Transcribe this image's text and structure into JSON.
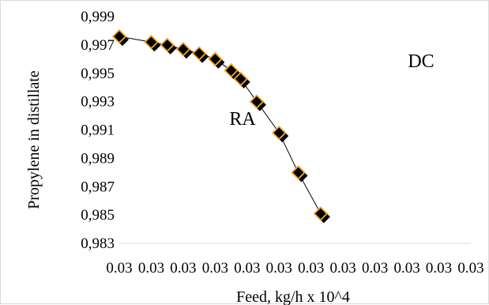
{
  "chart_data": {
    "type": "scatter",
    "title": "",
    "xlabel": "Feed,  kg/h x 10^4",
    "ylabel": "Propylene in distillate",
    "x_tick_labels": [
      "0.03",
      "0.03",
      "0.03",
      "0.03",
      "0.03",
      "0.03",
      "0.03",
      "0.03",
      "0.03",
      "0.03",
      "0.03",
      "0.03"
    ],
    "y_tick_labels": [
      "0,983",
      "0,985",
      "0,987",
      "0,989",
      "0,991",
      "0,993",
      "0,995",
      "0,997",
      "0,999"
    ],
    "ylim": [
      0.983,
      0.999
    ],
    "grid": false,
    "legend": "none",
    "annotations": [
      {
        "text": "RA"
      },
      {
        "text": "DC"
      }
    ],
    "series": [
      {
        "marker": "diamond",
        "marker_color": "#000000",
        "marker_edge_color": "#f5a623",
        "line_color": "#000000",
        "points": [
          {
            "x": 0,
            "y": 0.9976
          },
          {
            "x": 1,
            "y": 0.9972
          },
          {
            "x": 1.5,
            "y": 0.997
          },
          {
            "x": 2,
            "y": 0.9967
          },
          {
            "x": 2.5,
            "y": 0.9964
          },
          {
            "x": 3,
            "y": 0.996
          },
          {
            "x": 3.5,
            "y": 0.9952
          },
          {
            "x": 3.8,
            "y": 0.9946
          },
          {
            "x": 4.3,
            "y": 0.993
          },
          {
            "x": 5,
            "y": 0.9908
          },
          {
            "x": 5.6,
            "y": 0.988
          },
          {
            "x": 6.3,
            "y": 0.9851
          }
        ]
      }
    ]
  }
}
